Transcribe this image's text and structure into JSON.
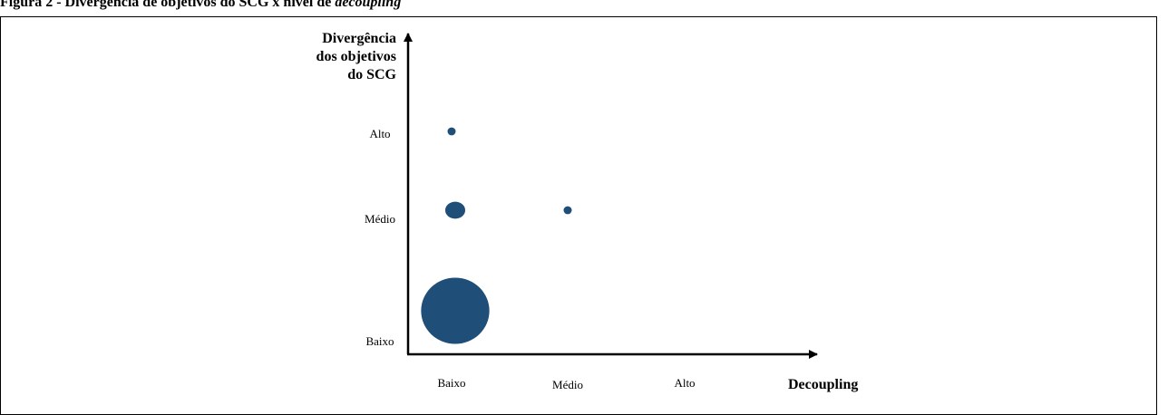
{
  "caption": {
    "prefix": "Figura 2 - Divergência de objetivos do SCG x nível de ",
    "emphasis": "decoupling"
  },
  "chart_data": {
    "type": "scatter",
    "title": "",
    "xlabel": "Decoupling",
    "ylabel_lines": [
      "Divergência",
      "dos objetivos",
      "do SCG"
    ],
    "x_categories": [
      "Baixo",
      "Médio",
      "Alto"
    ],
    "y_categories": [
      "Baixo",
      "Médio",
      "Alto"
    ],
    "grid": false,
    "legend": "none",
    "points": [
      {
        "x": "Baixo",
        "y": "Alto",
        "size": 1
      },
      {
        "x": "Baixo",
        "y": "Médio",
        "size": 6
      },
      {
        "x": "Médio",
        "y": "Médio",
        "size": 1
      },
      {
        "x": "Baixo",
        "y": "Baixo",
        "size": 70
      }
    ],
    "colors": {
      "bubble": "#1f4e79",
      "axis": "#000000"
    }
  }
}
